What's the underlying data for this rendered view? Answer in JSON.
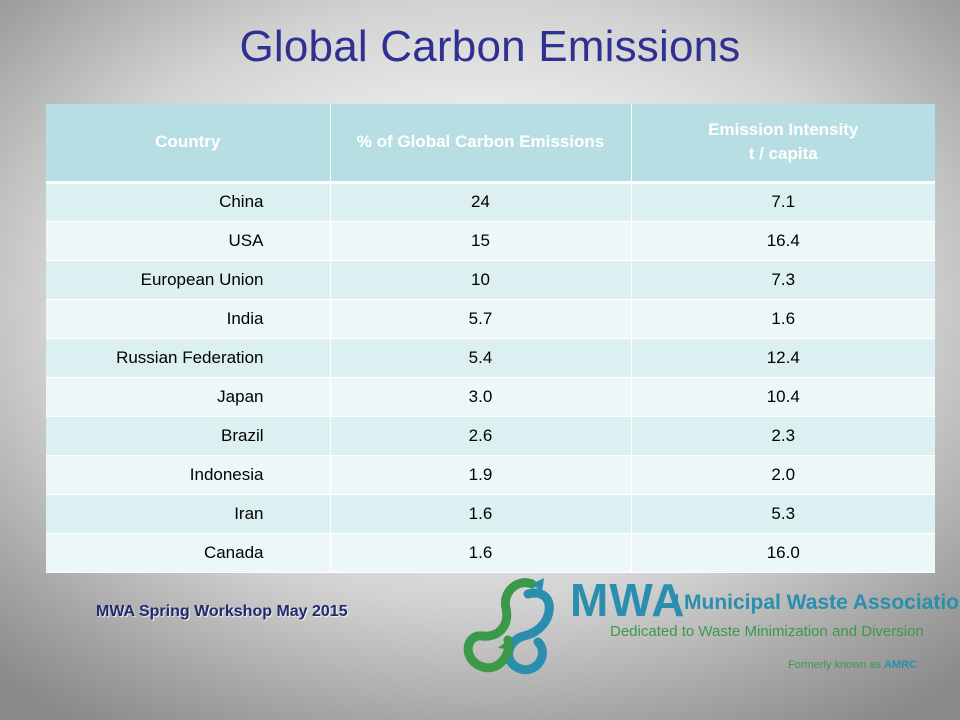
{
  "slide": {
    "title": "Global Carbon Emissions",
    "footer": "MWA Spring Workshop May 2015"
  },
  "table": {
    "headers": [
      "Country",
      "% of Global Carbon Emissions",
      "Emission  Intensity\nt / capita"
    ],
    "rows": [
      [
        "China",
        "24",
        "7.1"
      ],
      [
        "USA",
        "15",
        "16.4"
      ],
      [
        "European Union",
        "10",
        "7.3"
      ],
      [
        "India",
        "5.7",
        "1.6"
      ],
      [
        "Russian Federation",
        "5.4",
        "12.4"
      ],
      [
        "Japan",
        "3.0",
        "10.4"
      ],
      [
        "Brazil",
        "2.6",
        "2.3"
      ],
      [
        "Indonesia",
        "1.9",
        "2.0"
      ],
      [
        "Iran",
        "1.6",
        "5.3"
      ],
      [
        "Canada",
        "1.6",
        "16.0"
      ]
    ]
  },
  "logo": {
    "abbr": "MWA",
    "name": "Municipal Waste Association",
    "tagline": "Dedicated to Waste Minimization and Diversion",
    "former_prefix": "Formerly known as ",
    "former_name": "AMRC",
    "icon": "recycle-loop-icon"
  },
  "colors": {
    "title": "#2e3192",
    "header_bg": "#b7dfe3",
    "row_odd": "#dcf0f1",
    "row_even": "#eef7f8",
    "logo_blue": "#2a8fae",
    "logo_green": "#3a9a4a"
  }
}
